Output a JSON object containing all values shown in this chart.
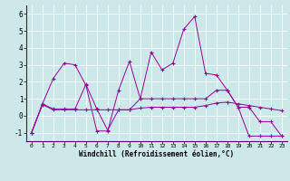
{
  "xlabel": "Windchill (Refroidissement éolien,°C)",
  "background_color": "#cce8e8",
  "grid_color": "#ffffff",
  "line_color": "#990099",
  "xlim": [
    -0.5,
    23.5
  ],
  "ylim": [
    -1.5,
    6.5
  ],
  "yticks": [
    -1,
    0,
    1,
    2,
    3,
    4,
    5,
    6
  ],
  "xticks": [
    0,
    1,
    2,
    3,
    4,
    5,
    6,
    7,
    8,
    9,
    10,
    11,
    12,
    13,
    14,
    15,
    16,
    17,
    18,
    19,
    20,
    21,
    22,
    23
  ],
  "line1": [
    -1.0,
    0.7,
    2.2,
    3.1,
    3.0,
    1.8,
    -0.9,
    -0.9,
    1.5,
    3.2,
    1.0,
    3.75,
    2.7,
    3.1,
    5.1,
    5.85,
    2.5,
    2.4,
    1.5,
    0.5,
    -1.2,
    -1.2,
    -1.2,
    -1.2
  ],
  "line2": [
    -1.0,
    0.7,
    0.4,
    0.4,
    0.4,
    1.85,
    0.4,
    -0.85,
    0.35,
    0.35,
    1.0,
    1.0,
    1.0,
    1.0,
    1.0,
    1.0,
    1.0,
    1.5,
    1.5,
    0.5,
    0.5,
    -0.35,
    -0.35,
    -1.2
  ],
  "line3": [
    -1.0,
    0.65,
    0.35,
    0.35,
    0.35,
    0.35,
    0.35,
    0.35,
    0.35,
    0.35,
    0.45,
    0.5,
    0.5,
    0.5,
    0.5,
    0.5,
    0.6,
    0.75,
    0.8,
    0.7,
    0.6,
    0.5,
    0.4,
    0.3
  ]
}
